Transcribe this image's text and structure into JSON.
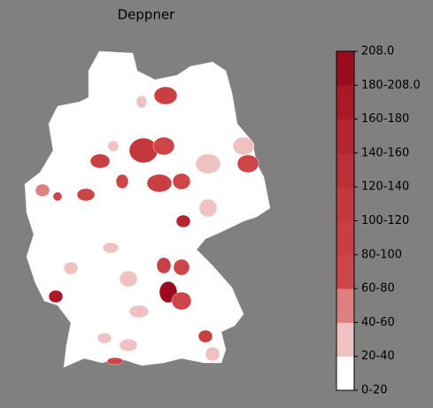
{
  "chart_data": {
    "type": "choropleth",
    "title": "Deppner",
    "colorbar": {
      "spacing": "uniform",
      "ticks": [
        {
          "value": 0,
          "label": "0-20"
        },
        {
          "value": 20,
          "label": "20-40"
        },
        {
          "value": 40,
          "label": "40-60"
        },
        {
          "value": 60,
          "label": "60-80"
        },
        {
          "value": 80,
          "label": "80-100"
        },
        {
          "value": 100,
          "label": "100-120"
        },
        {
          "value": 120,
          "label": "120-140"
        },
        {
          "value": 140,
          "label": "140-160"
        },
        {
          "value": 160,
          "label": "160-180"
        },
        {
          "value": 180,
          "label": "180-208.0"
        },
        {
          "value": 208,
          "label": "208.0"
        }
      ],
      "colors": [
        "#ffffff",
        "#efc1c1",
        "#dc8080",
        "#cd4547",
        "#c93f42",
        "#c4383c",
        "#bd2f36",
        "#b52530",
        "#aa1827",
        "#9b0a1e"
      ]
    }
  }
}
